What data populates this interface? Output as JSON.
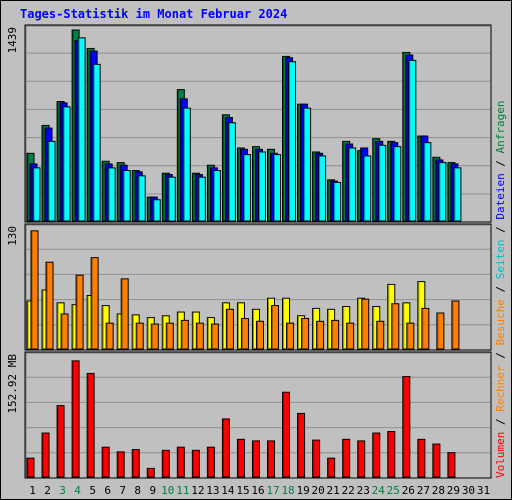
{
  "chart_data": {
    "type": "bar",
    "title": "Tages-Statistik im Monat Februar 2024",
    "categories": [
      "1",
      "2",
      "3",
      "4",
      "5",
      "6",
      "7",
      "8",
      "9",
      "10",
      "11",
      "12",
      "13",
      "14",
      "15",
      "16",
      "17",
      "18",
      "19",
      "20",
      "21",
      "22",
      "23",
      "24",
      "25",
      "26",
      "27",
      "28",
      "29",
      "30",
      "31"
    ],
    "weekend_days": [
      "3",
      "4",
      "10",
      "11",
      "17",
      "18",
      "24",
      "25"
    ],
    "panels": [
      {
        "name": "hits",
        "max_label": "1439",
        "ylim": [
          0,
          1439
        ],
        "series": [
          {
            "name": "Anfragen",
            "color": "#008040",
            "values": [
              510,
              720,
              900,
              1439,
              1300,
              450,
              440,
              380,
              180,
              360,
              990,
              360,
              420,
              800,
              550,
              560,
              540,
              1240,
              880,
              520,
              310,
              600,
              530,
              620,
              600,
              1270,
              640,
              480,
              440,
              0,
              0
            ]
          },
          {
            "name": "Dateien",
            "color": "#0000ff",
            "values": [
              430,
              700,
              890,
              1360,
              1280,
              430,
              420,
              370,
              180,
              350,
              920,
              350,
              400,
              780,
              540,
              540,
              510,
              1230,
              880,
              510,
              300,
              580,
              550,
              600,
              590,
              1250,
              640,
              460,
              430,
              0,
              0
            ]
          },
          {
            "name": "Seiten",
            "color": "#00ffff",
            "values": [
              400,
              600,
              860,
              1380,
              1180,
              400,
              380,
              340,
              160,
              330,
              850,
              330,
              380,
              740,
              500,
              520,
              500,
              1200,
              850,
              490,
              290,
              550,
              490,
              570,
              560,
              1210,
              590,
              440,
              400,
              0,
              0
            ]
          }
        ]
      },
      {
        "name": "visits",
        "max_label": "130",
        "ylim": [
          0,
          130
        ],
        "series": [
          {
            "name": "Besuche",
            "color": "#ffff00",
            "values": [
              52,
              64,
              50,
              48,
              58,
              47,
              38,
              37,
              34,
              36,
              40,
              40,
              34,
              50,
              50,
              43,
              55,
              55,
              36,
              44,
              43,
              46,
              55,
              46,
              70,
              50,
              73,
              0,
              0,
              0,
              0
            ]
          },
          {
            "name": "Rechner",
            "color": "#ff8000",
            "values": [
              128,
              94,
              38,
              80,
              99,
              28,
              76,
              28,
              27,
              28,
              31,
              28,
              27,
              43,
              33,
              30,
              47,
              28,
              33,
              30,
              31,
              28,
              54,
              30,
              49,
              28,
              44,
              39,
              52,
              0,
              0
            ]
          }
        ]
      },
      {
        "name": "volume",
        "max_label": "152.92 MB",
        "ylim": [
          0,
          152.92
        ],
        "series": [
          {
            "name": "Volumen",
            "color": "#ff0000",
            "values": [
              24,
              56,
              91,
              148,
              132,
              38,
              32,
              35,
              11,
              34,
              38,
              34,
              38,
              74,
              48,
              46,
              46,
              108,
              81,
              47,
              24,
              48,
              46,
              56,
              58,
              128,
              48,
              42,
              31,
              0,
              0
            ]
          }
        ]
      }
    ],
    "legend_vertical": [
      "Volumen",
      "Rechner",
      "Besuche",
      "Seiten",
      "Dateien",
      "Anfragen"
    ],
    "legend_separator": "/",
    "grid": true,
    "legend_position": "right-vertical"
  }
}
